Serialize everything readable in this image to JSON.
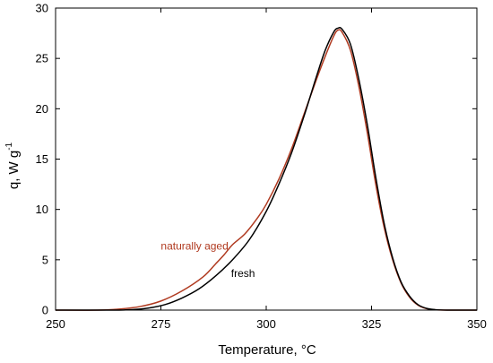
{
  "chart_data": {
    "type": "line",
    "xlabel": "Temperature, °C",
    "ylabel": {
      "main": "q, W g",
      "superscript": "-1"
    },
    "xlim": [
      250,
      350
    ],
    "ylim": [
      0,
      30
    ],
    "xticks": [
      250,
      275,
      300,
      325,
      350
    ],
    "yticks": [
      0,
      5,
      10,
      15,
      20,
      25,
      30
    ],
    "grid": false,
    "series": [
      {
        "name": "naturally aged",
        "color": "#b03a20",
        "points": [
          [
            250,
            0
          ],
          [
            260,
            0
          ],
          [
            265,
            0.1
          ],
          [
            270,
            0.35
          ],
          [
            275,
            0.9
          ],
          [
            280,
            1.9
          ],
          [
            285,
            3.3
          ],
          [
            288,
            4.6
          ],
          [
            290,
            5.5
          ],
          [
            292,
            6.5
          ],
          [
            295,
            7.6
          ],
          [
            298,
            9.2
          ],
          [
            300,
            10.5
          ],
          [
            303,
            13
          ],
          [
            306,
            16
          ],
          [
            309,
            19.5
          ],
          [
            312,
            23
          ],
          [
            314,
            25.2
          ],
          [
            316,
            27.2
          ],
          [
            317,
            27.8
          ],
          [
            318,
            27.6
          ],
          [
            320,
            25.8
          ],
          [
            322,
            22.2
          ],
          [
            324,
            17.6
          ],
          [
            326,
            12.5
          ],
          [
            328,
            8.2
          ],
          [
            330,
            5
          ],
          [
            332,
            2.7
          ],
          [
            334,
            1.3
          ],
          [
            336,
            0.5
          ],
          [
            338,
            0.15
          ],
          [
            340,
            0.03
          ],
          [
            343,
            0
          ],
          [
            350,
            0
          ]
        ]
      },
      {
        "name": "fresh",
        "color": "#000000",
        "points": [
          [
            250,
            0
          ],
          [
            263,
            0
          ],
          [
            268,
            0.05
          ],
          [
            272,
            0.2
          ],
          [
            276,
            0.55
          ],
          [
            280,
            1.2
          ],
          [
            284,
            2.1
          ],
          [
            288,
            3.4
          ],
          [
            292,
            5
          ],
          [
            296,
            7
          ],
          [
            300,
            9.8
          ],
          [
            303,
            12.5
          ],
          [
            306,
            15.6
          ],
          [
            309,
            19.3
          ],
          [
            312,
            23.3
          ],
          [
            314,
            25.8
          ],
          [
            316,
            27.6
          ],
          [
            317,
            28
          ],
          [
            318,
            27.9
          ],
          [
            320,
            26.4
          ],
          [
            322,
            22.9
          ],
          [
            324,
            18.4
          ],
          [
            326,
            13.2
          ],
          [
            328,
            8.6
          ],
          [
            330,
            5.2
          ],
          [
            332,
            2.8
          ],
          [
            334,
            1.4
          ],
          [
            336,
            0.55
          ],
          [
            338,
            0.18
          ],
          [
            340,
            0.05
          ],
          [
            343,
            0
          ],
          [
            350,
            0
          ]
        ]
      }
    ],
    "annotations": [
      {
        "text": "naturally aged",
        "color": "#b03a20",
        "x": 283,
        "y": 6
      },
      {
        "text": "fresh",
        "color": "#000000",
        "x": 294.5,
        "y": 3.3
      }
    ]
  }
}
